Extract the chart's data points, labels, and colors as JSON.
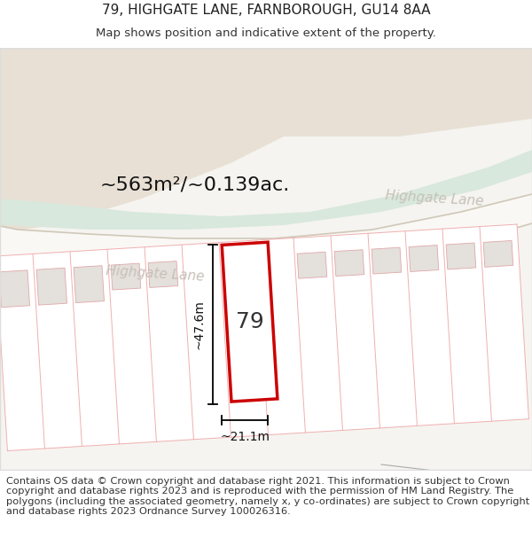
{
  "title_line1": "79, HIGHGATE LANE, FARNBOROUGH, GU14 8AA",
  "title_line2": "Map shows position and indicative extent of the property.",
  "footer_text": "Contains OS data © Crown copyright and database right 2021. This information is subject to Crown copyright and database rights 2023 and is reproduced with the permission of HM Land Registry. The polygons (including the associated geometry, namely x, y co-ordinates) are subject to Crown copyright and database rights 2023 Ordnance Survey 100026316.",
  "area_label": "~563m²/~0.139ac.",
  "width_label": "~21.1m",
  "height_label": "~47.6m",
  "plot_number": "79",
  "road_label": "Highgate Lane",
  "map_bg": "#f5f4f0",
  "land_color": "#e8e0d5",
  "green_color": "#d8e8dc",
  "road_fill": "#faf8f5",
  "road_edge_color": "#d0c8b8",
  "plot_line_color": "#f0b0b0",
  "highlight_color": "#cc0000",
  "building_color": "#e4e0dc",
  "building_edge": "#e0a8a8",
  "road_label_color": "#c8c0b8",
  "title_fontsize": 11,
  "subtitle_fontsize": 9.5,
  "footer_fontsize": 8.2,
  "map_border_color": "#dddddd"
}
